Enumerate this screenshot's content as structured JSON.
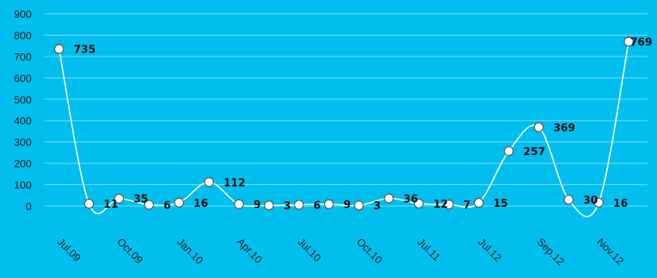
{
  "chart_data": {
    "type": "line",
    "title": "",
    "xlabel": "",
    "ylabel": "",
    "ylim": [
      0,
      900
    ],
    "yticks": [
      0,
      100,
      200,
      300,
      400,
      500,
      600,
      700,
      800,
      900
    ],
    "grid": true,
    "smooth": true,
    "legend": "none",
    "colors": {
      "background": "#00bfef",
      "gridline": "#7fd9f5",
      "line": "#ffffff",
      "marker_fill": "#ffffff",
      "marker_stroke": "#555555",
      "text": "#111111"
    },
    "x_tick_labels": [
      "Jul.09",
      "Oct.09",
      "Jan.10",
      "Apr.10",
      "Jul.10",
      "Oct.10",
      "Jul.11",
      "Jul.12",
      "Sep.12",
      "Nov.12"
    ],
    "series": [
      {
        "values": [
          735,
          11,
          35,
          6,
          16,
          112,
          9,
          3,
          6,
          9,
          3,
          36,
          12,
          7,
          15,
          257,
          369,
          30,
          16,
          769
        ],
        "labels": [
          "735",
          "11",
          "35",
          "6",
          "16",
          "112",
          "9",
          "3",
          "6",
          "9",
          "3",
          "36",
          "12",
          "7",
          "15",
          "257",
          "369",
          "30",
          "16",
          "769"
        ]
      }
    ]
  }
}
